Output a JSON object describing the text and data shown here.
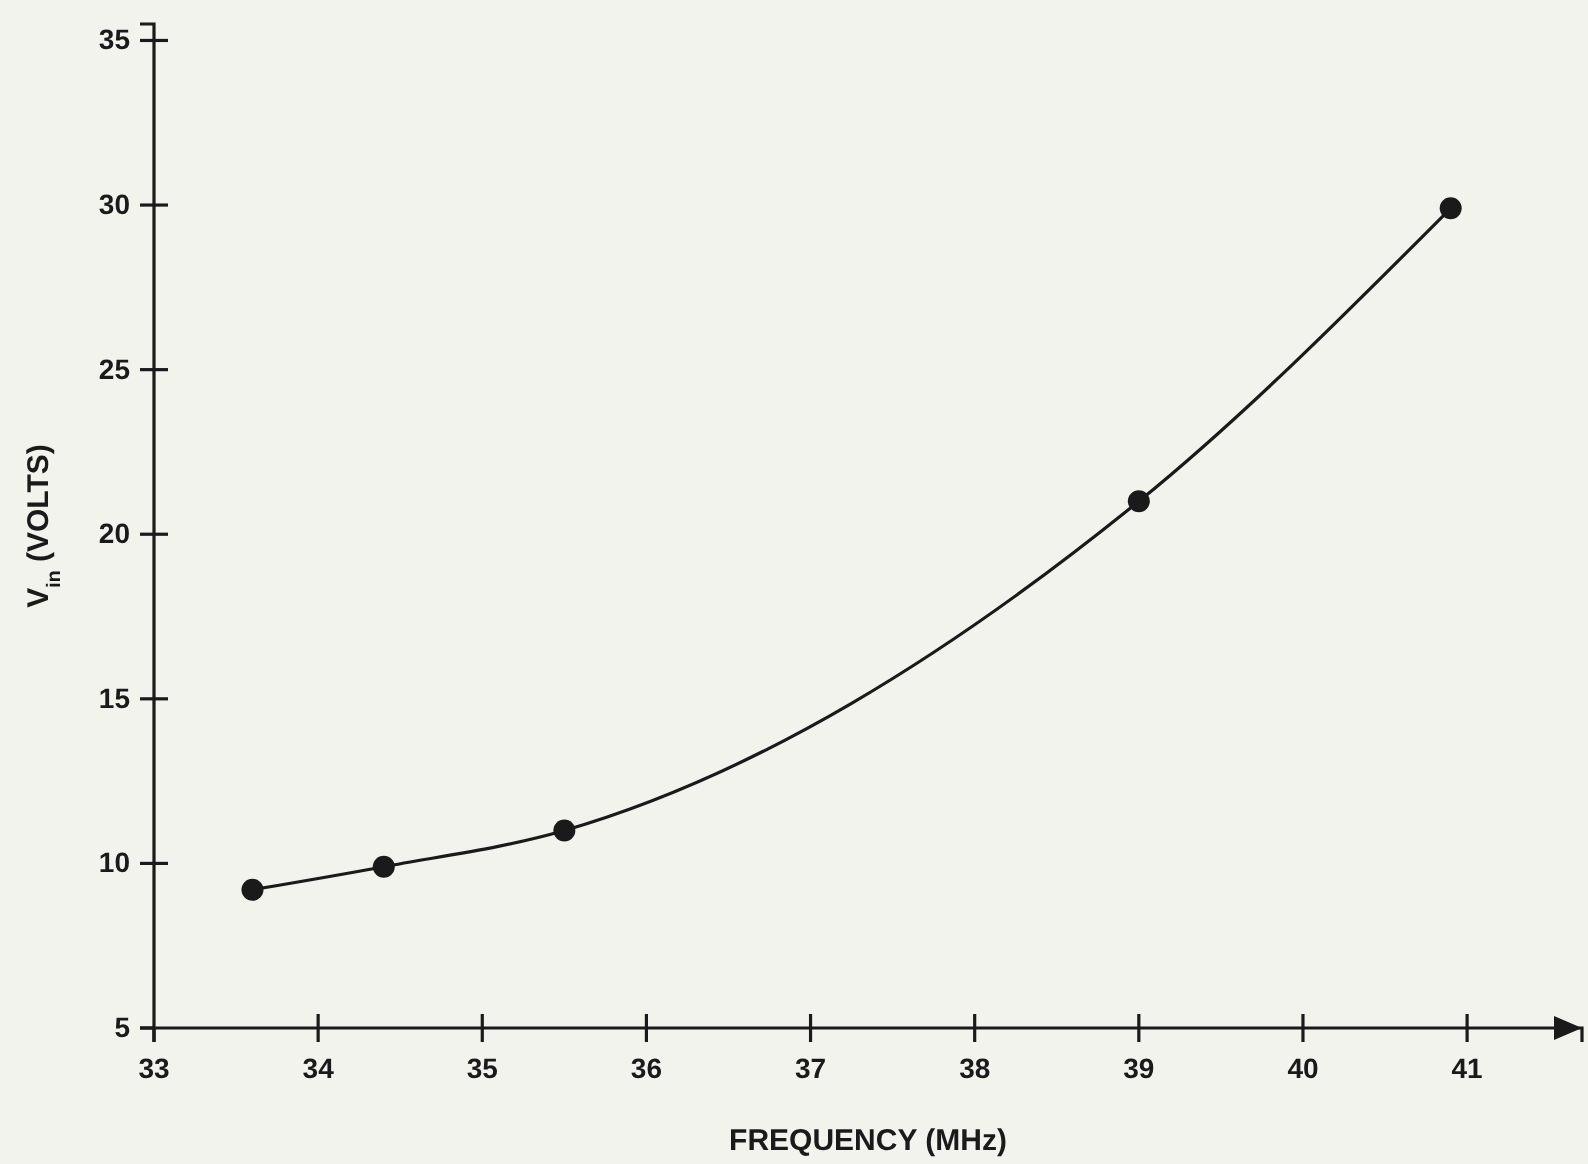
{
  "chart_data": {
    "type": "line",
    "xlabel": "FREQUENCY (MHz)",
    "ylabel": "V$_{in}$ (VOLTS)",
    "x": [
      33.6,
      34.4,
      35.5,
      39.0,
      40.9
    ],
    "series": [
      {
        "color": "#1a1a1a",
        "values": [
          9.2,
          9.9,
          11.0,
          21.0,
          29.9
        ]
      }
    ],
    "xlim": [
      33,
      41.7
    ],
    "ylim": [
      5,
      35.5
    ],
    "xticks": [
      33,
      34,
      35,
      36,
      37,
      38,
      39,
      40,
      41
    ],
    "yticks": [
      5,
      10,
      15,
      20,
      25,
      30,
      35
    ],
    "marker": "circle",
    "line_style": "solid"
  }
}
